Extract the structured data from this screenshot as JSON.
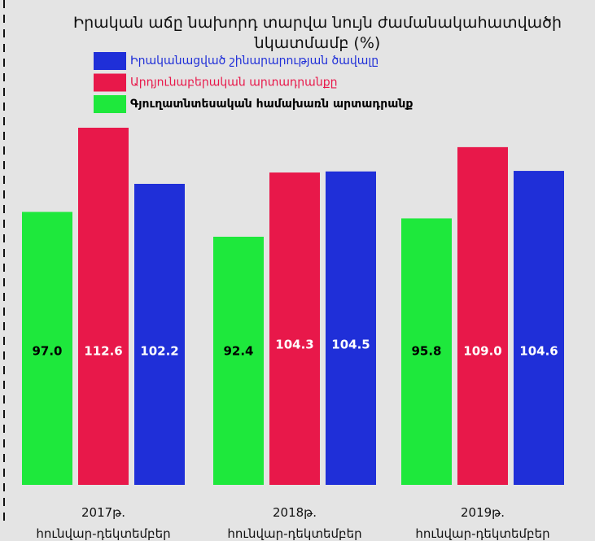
{
  "chart_data": {
    "type": "bar",
    "title": "Իրական աճը նախորդ տարվա նույն ժամանակահատվածի\nնկատմամբ (%)",
    "categories": [
      "2017թ.\nհունվար-դեկտեմբեր",
      "2018թ.\nհունվար-դեկտեմբեր",
      "2019թ.\nհունվար-դեկտեմբեր"
    ],
    "series": [
      {
        "name": "Գյուղատնտեսական համախառն արտադրանք",
        "color": "#1ee83c",
        "values": [
          97.0,
          92.4,
          95.8
        ],
        "value_labels": [
          "97.0",
          "92.4",
          "95.8"
        ]
      },
      {
        "name": "Արդյունաբերական արտադրանքը",
        "color": "#e8184a",
        "values": [
          112.6,
          104.3,
          109.0
        ],
        "value_labels": [
          "112.6",
          "104.3",
          "109.0"
        ]
      },
      {
        "name": "Իրականացված շինարարության ծավալը",
        "color": "#1f2fd8",
        "values": [
          102.2,
          104.5,
          104.6
        ],
        "value_labels": [
          "102.2",
          "104.5",
          "104.6"
        ]
      }
    ]
  }
}
